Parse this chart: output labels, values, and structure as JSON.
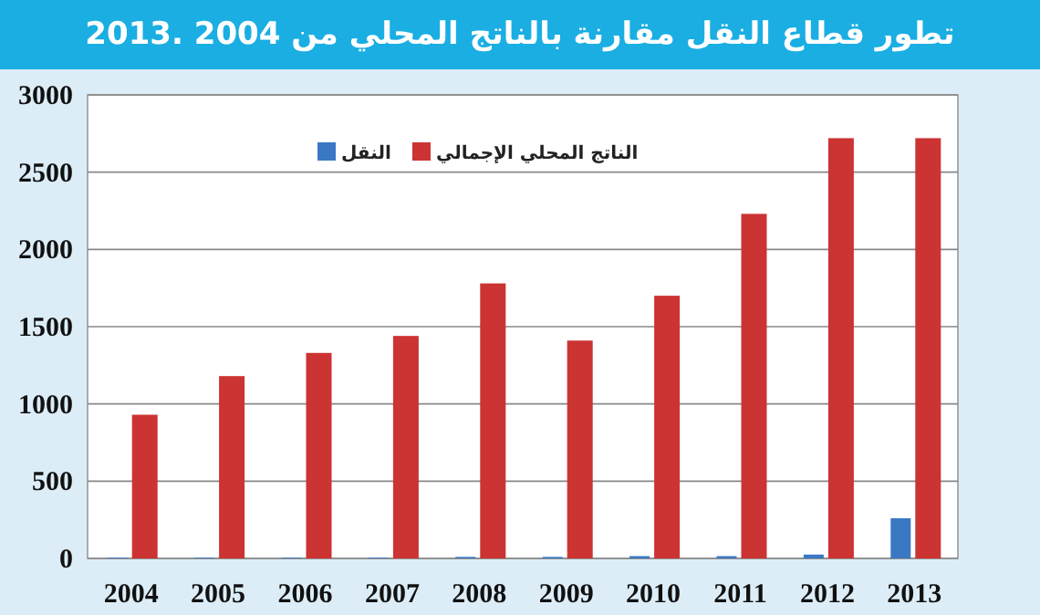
{
  "chart_data": {
    "type": "bar",
    "title": "تطور قطاع النقل مقارنة بالناتج المحلي من 2004 .2013",
    "categories": [
      "2004",
      "2005",
      "2006",
      "2007",
      "2008",
      "2009",
      "2010",
      "2011",
      "2012",
      "2013"
    ],
    "series": [
      {
        "name": "النقل",
        "color": "#3b78c4",
        "values": [
          5,
          5,
          5,
          5,
          10,
          10,
          15,
          15,
          25,
          260
        ]
      },
      {
        "name": "الناتج المحلي الإجمالي",
        "color": "#cc3333",
        "values": [
          930,
          1180,
          1330,
          1440,
          1780,
          1410,
          1700,
          2230,
          2720,
          2720
        ]
      }
    ],
    "ylim": [
      0,
      3000
    ],
    "yticks": [
      0,
      500,
      1000,
      1500,
      2000,
      2500,
      3000
    ],
    "grid": "y",
    "legend": "top"
  }
}
